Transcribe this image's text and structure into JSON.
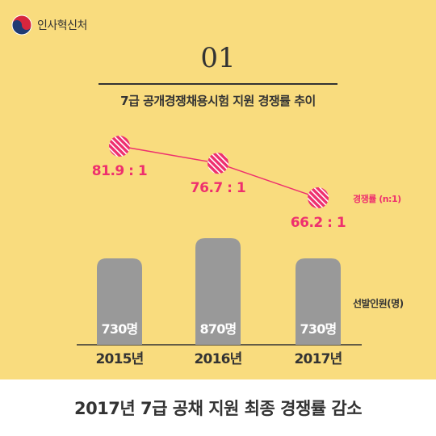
{
  "header": {
    "logo_text": "인사혁신처"
  },
  "section_number": "01",
  "chart_data": {
    "type": "bar",
    "title": "7급 공개경쟁채용시험 지원 경쟁률 추이",
    "categories": [
      "2015년",
      "2016년",
      "2017년"
    ],
    "series": [
      {
        "name": "선발인원(명)",
        "values": [
          730,
          870,
          730
        ],
        "labels": [
          "730명",
          "870명",
          "730명"
        ],
        "color": "#999999"
      },
      {
        "name": "경쟁률 (n:1)",
        "type": "line",
        "values": [
          81.9,
          76.7,
          66.2
        ],
        "labels": [
          "81.9 : 1",
          "76.7 : 1",
          "66.2 : 1"
        ],
        "color": "#ee2f6e"
      }
    ],
    "bar_range": [
      0,
      870
    ],
    "line_range": [
      66.2,
      81.9
    ],
    "grid": false
  },
  "footer": {
    "text": "2017년 7급 공채 지원 최종 경쟁률 감소"
  },
  "colors": {
    "background": "#f9dc7e",
    "accent": "#ee2f6e",
    "bar": "#999999",
    "text": "#333333"
  }
}
